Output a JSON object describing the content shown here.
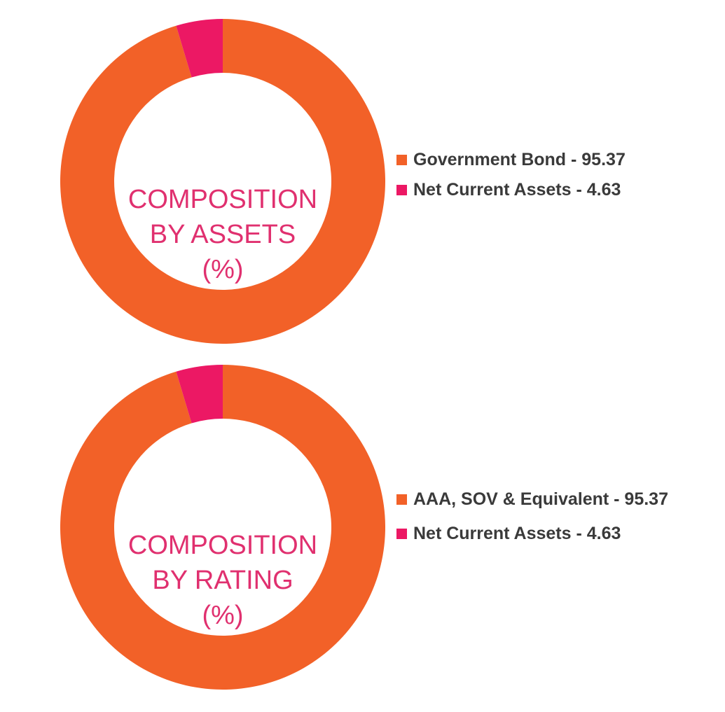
{
  "colors": {
    "primary": "#f26128",
    "secondary": "#ec1864",
    "title": "#e0306f",
    "legend_text": "#3a3a3a"
  },
  "chart_data": [
    {
      "type": "pie",
      "style": "donut",
      "title_lines": [
        "COMPOSITION",
        "BY ASSETS",
        "(%)"
      ],
      "slices": [
        {
          "label": "Government Bond - 95.37",
          "value": 95.37,
          "color": "#f26128"
        },
        {
          "label": "Net Current Assets - 4.63",
          "value": 4.63,
          "color": "#ec1864"
        }
      ],
      "legend_position": "right"
    },
    {
      "type": "pie",
      "style": "donut",
      "title_lines": [
        "COMPOSITION",
        "BY RATING",
        "(%)"
      ],
      "slices": [
        {
          "label": "AAA, SOV & Equivalent - 95.37",
          "value": 95.37,
          "color": "#f26128"
        },
        {
          "label": "Net Current Assets - 4.63",
          "value": 4.63,
          "color": "#ec1864"
        }
      ],
      "legend_position": "right"
    }
  ]
}
